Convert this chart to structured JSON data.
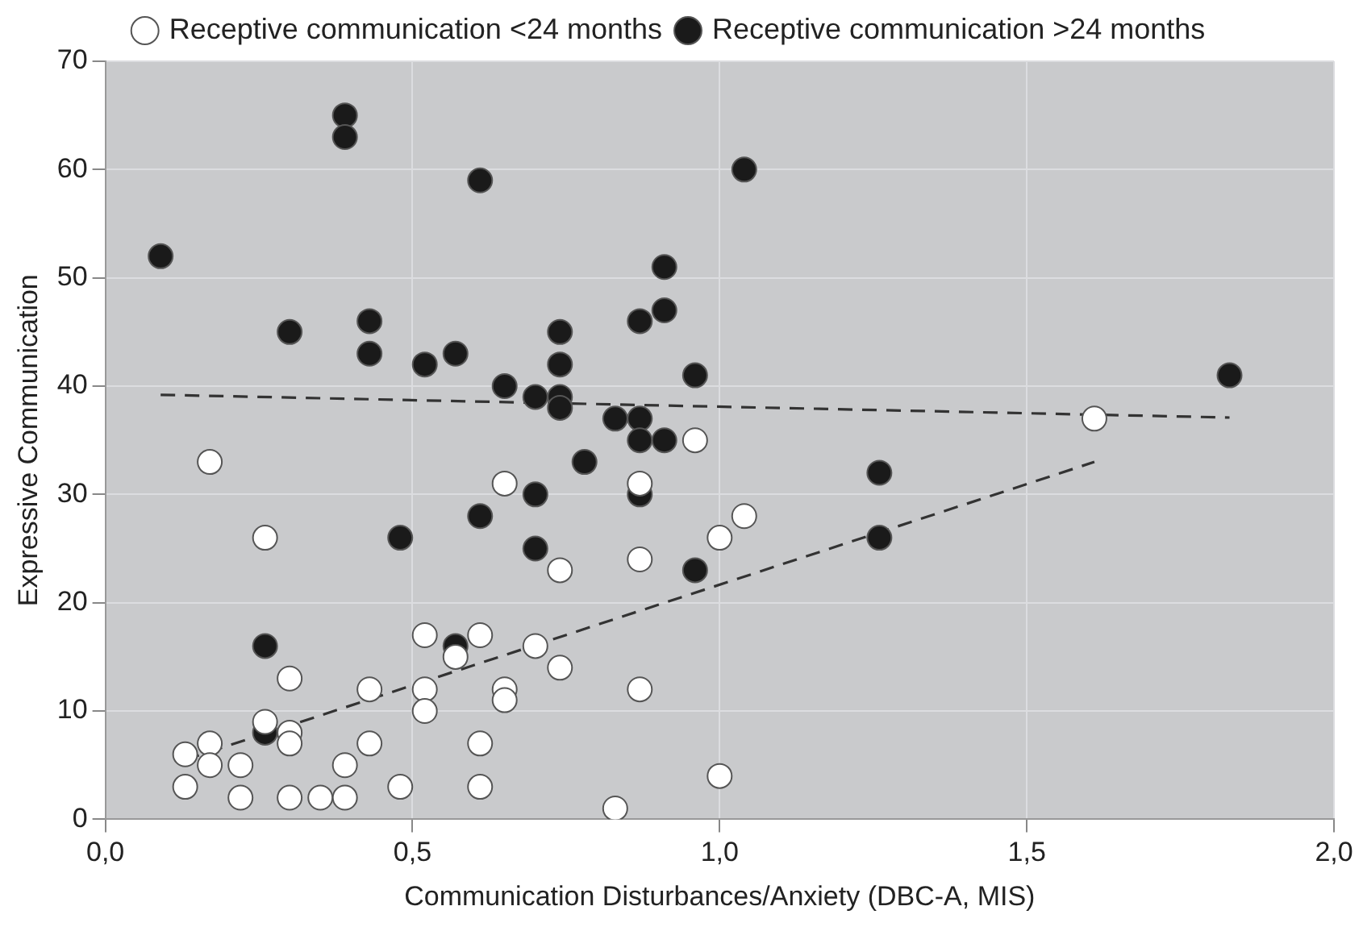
{
  "chart_data": {
    "type": "scatter",
    "xlabel": "Communication Disturbances/Anxiety (DBC-A, MIS)",
    "ylabel": "Expressive Communication",
    "xlim": [
      0,
      2
    ],
    "xticks": [
      {
        "value": 0,
        "label": "0,0"
      },
      {
        "value": 0.5,
        "label": "0,5"
      },
      {
        "value": 1,
        "label": "1,0"
      },
      {
        "value": 1.5,
        "label": "1,5"
      },
      {
        "value": 2,
        "label": "2,0"
      }
    ],
    "ylim": [
      0,
      70
    ],
    "yticks": [
      0,
      10,
      20,
      30,
      40,
      50,
      60,
      70
    ],
    "grid": true,
    "legend": "top",
    "marker": "circle",
    "series": [
      {
        "name": "Receptive communication <24 months",
        "color": "#ffffff",
        "x": [
          0.17,
          0.26,
          0.13,
          0.13,
          0.17,
          0.17,
          0.22,
          0.22,
          0.26,
          0.3,
          0.3,
          0.3,
          0.3,
          0.35,
          0.39,
          0.39,
          0.43,
          0.43,
          0.48,
          0.52,
          0.52,
          0.52,
          0.57,
          0.61,
          0.61,
          0.61,
          0.65,
          0.65,
          0.65,
          0.7,
          0.74,
          0.74,
          0.83,
          0.87,
          0.87,
          0.87,
          0.96,
          1.0,
          1.04,
          1.0,
          1.61
        ],
        "values": [
          33,
          26,
          6,
          3,
          7,
          5,
          5,
          2,
          9,
          13,
          8,
          7,
          2,
          2,
          2,
          5,
          12,
          7,
          3,
          17,
          12,
          10,
          15,
          17,
          7,
          3,
          31,
          12,
          11,
          16,
          23,
          14,
          1,
          31,
          24,
          12,
          35,
          26,
          28,
          4,
          37
        ]
      },
      {
        "name": "Receptive communication >24 months",
        "color": "#1a1a1a",
        "x": [
          0.09,
          0.26,
          0.26,
          0.3,
          0.39,
          0.39,
          0.43,
          0.43,
          0.48,
          0.52,
          0.57,
          0.57,
          0.61,
          0.61,
          0.65,
          0.7,
          0.7,
          0.7,
          0.74,
          0.74,
          0.74,
          0.74,
          0.78,
          0.83,
          0.87,
          0.87,
          0.87,
          0.87,
          0.91,
          0.91,
          0.91,
          0.96,
          0.96,
          1.04,
          1.26,
          1.26,
          1.83
        ],
        "values": [
          52,
          16,
          8,
          45,
          65,
          63,
          46,
          43,
          26,
          42,
          43,
          16,
          59,
          28,
          40,
          39,
          30,
          25,
          45,
          42,
          39,
          38,
          33,
          37,
          46,
          37,
          35,
          30,
          51,
          47,
          35,
          41,
          23,
          60,
          32,
          26,
          41
        ]
      },
      {
        "type": "line",
        "color": "#333333",
        "line_style": "dashed",
        "marker": "none",
        "x": [
          0.09,
          1.83
        ],
        "values": [
          39.2,
          37.1
        ]
      },
      {
        "type": "line",
        "color": "#333333",
        "line_style": "dashed",
        "marker": "none",
        "x": [
          0.13,
          1.61
        ],
        "values": [
          5.5,
          33
        ]
      }
    ]
  }
}
